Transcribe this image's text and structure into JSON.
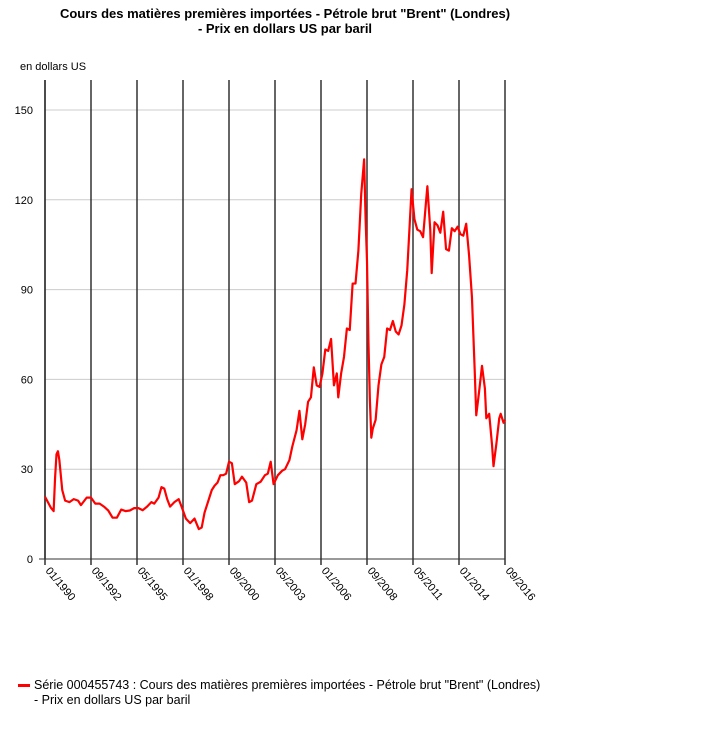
{
  "chart_data": {
    "type": "line",
    "title": "Cours des matières premières importées - Pétrole brut \"Brent\" (Londres)",
    "subtitle": "- Prix en dollars US par baril",
    "ylabel": "en dollars US",
    "ylim": [
      0,
      160
    ],
    "yticks": [
      0,
      30,
      60,
      90,
      120,
      150
    ],
    "xtick_labels": [
      "01/1990",
      "09/1992",
      "05/1995",
      "01/1998",
      "09/2000",
      "05/2003",
      "01/2006",
      "09/2008",
      "05/2011",
      "01/2014",
      "09/2016"
    ],
    "grid": true,
    "legend_position": "bottom-left",
    "color": "#ff0000",
    "series": [
      {
        "name": "Série 000455743 : Cours des matières premières importées - Pétrole brut \"Brent\" (Londres) - Prix en dollars US par baril",
        "points": [
          [
            "1990-01",
            20.8
          ],
          [
            "1990-03",
            19.0
          ],
          [
            "1990-05",
            17.2
          ],
          [
            "1990-07",
            16.0
          ],
          [
            "1990-08",
            27.0
          ],
          [
            "1990-09",
            35.0
          ],
          [
            "1990-10",
            36.0
          ],
          [
            "1990-11",
            33.0
          ],
          [
            "1990-12",
            28.0
          ],
          [
            "1991-01",
            23.0
          ],
          [
            "1991-03",
            19.5
          ],
          [
            "1991-06",
            19.0
          ],
          [
            "1991-09",
            20.0
          ],
          [
            "1991-12",
            19.5
          ],
          [
            "1992-02",
            18.0
          ],
          [
            "1992-06",
            20.5
          ],
          [
            "1992-09",
            20.5
          ],
          [
            "1992-12",
            18.5
          ],
          [
            "1993-03",
            18.5
          ],
          [
            "1993-06",
            17.5
          ],
          [
            "1993-09",
            16.2
          ],
          [
            "1993-12",
            13.8
          ],
          [
            "1994-03",
            13.8
          ],
          [
            "1994-06",
            16.5
          ],
          [
            "1994-09",
            16.0
          ],
          [
            "1994-12",
            16.2
          ],
          [
            "1995-03",
            17.0
          ],
          [
            "1995-06",
            17.0
          ],
          [
            "1995-09",
            16.3
          ],
          [
            "1995-12",
            17.5
          ],
          [
            "1996-03",
            19.0
          ],
          [
            "1996-05",
            18.5
          ],
          [
            "1996-08",
            20.5
          ],
          [
            "1996-10",
            24.0
          ],
          [
            "1996-12",
            23.5
          ],
          [
            "1997-02",
            20.0
          ],
          [
            "1997-04",
            17.5
          ],
          [
            "1997-07",
            19.0
          ],
          [
            "1997-10",
            20.0
          ],
          [
            "1997-12",
            17.5
          ],
          [
            "1998-03",
            13.5
          ],
          [
            "1998-06",
            12.0
          ],
          [
            "1998-09",
            13.5
          ],
          [
            "1998-12",
            10.0
          ],
          [
            "1999-02",
            10.5
          ],
          [
            "1999-04",
            15.5
          ],
          [
            "1999-07",
            20.0
          ],
          [
            "1999-09",
            23.0
          ],
          [
            "1999-11",
            24.5
          ],
          [
            "2000-01",
            25.5
          ],
          [
            "2000-03",
            28.0
          ],
          [
            "2000-05",
            28.0
          ],
          [
            "2000-07",
            28.5
          ],
          [
            "2000-09",
            32.5
          ],
          [
            "2000-11",
            32.0
          ],
          [
            "2001-01",
            25.0
          ],
          [
            "2001-04",
            26.0
          ],
          [
            "2001-06",
            27.5
          ],
          [
            "2001-09",
            25.5
          ],
          [
            "2001-11",
            19.0
          ],
          [
            "2002-01",
            19.5
          ],
          [
            "2002-04",
            25.0
          ],
          [
            "2002-07",
            25.8
          ],
          [
            "2002-10",
            28.0
          ],
          [
            "2002-12",
            28.5
          ],
          [
            "2003-02",
            32.5
          ],
          [
            "2003-04",
            25.0
          ],
          [
            "2003-07",
            28.0
          ],
          [
            "2003-10",
            29.5
          ],
          [
            "2003-12",
            30.0
          ],
          [
            "2004-03",
            33.0
          ],
          [
            "2004-05",
            37.5
          ],
          [
            "2004-08",
            43.0
          ],
          [
            "2004-10",
            49.5
          ],
          [
            "2004-12",
            40.0
          ],
          [
            "2005-02",
            45.0
          ],
          [
            "2005-04",
            52.5
          ],
          [
            "2005-06",
            54.0
          ],
          [
            "2005-08",
            64.0
          ],
          [
            "2005-10",
            58.0
          ],
          [
            "2005-12",
            57.5
          ],
          [
            "2006-02",
            62.0
          ],
          [
            "2006-04",
            70.0
          ],
          [
            "2006-06",
            69.5
          ],
          [
            "2006-08",
            73.5
          ],
          [
            "2006-10",
            58.0
          ],
          [
            "2006-12",
            62.0
          ],
          [
            "2007-01",
            54.0
          ],
          [
            "2007-03",
            62.0
          ],
          [
            "2007-05",
            67.5
          ],
          [
            "2007-07",
            77.0
          ],
          [
            "2007-09",
            76.5
          ],
          [
            "2007-11",
            92.0
          ],
          [
            "2008-01",
            92.0
          ],
          [
            "2008-03",
            103.0
          ],
          [
            "2008-05",
            122.0
          ],
          [
            "2008-07",
            133.5
          ],
          [
            "2008-08",
            114.0
          ],
          [
            "2008-09",
            99.5
          ],
          [
            "2008-10",
            72.5
          ],
          [
            "2008-11",
            53.0
          ],
          [
            "2008-12",
            40.5
          ],
          [
            "2009-01",
            43.5
          ],
          [
            "2009-03",
            46.5
          ],
          [
            "2009-05",
            58.0
          ],
          [
            "2009-07",
            65.0
          ],
          [
            "2009-09",
            67.5
          ],
          [
            "2009-11",
            77.0
          ],
          [
            "2010-01",
            76.5
          ],
          [
            "2010-03",
            79.5
          ],
          [
            "2010-05",
            76.0
          ],
          [
            "2010-07",
            75.0
          ],
          [
            "2010-09",
            78.0
          ],
          [
            "2010-11",
            85.0
          ],
          [
            "2011-01",
            96.5
          ],
          [
            "2011-03",
            114.5
          ],
          [
            "2011-04",
            123.5
          ],
          [
            "2011-06",
            113.5
          ],
          [
            "2011-08",
            110.0
          ],
          [
            "2011-10",
            109.5
          ],
          [
            "2011-12",
            107.5
          ],
          [
            "2012-02",
            119.0
          ],
          [
            "2012-03",
            124.5
          ],
          [
            "2012-05",
            110.0
          ],
          [
            "2012-06",
            95.5
          ],
          [
            "2012-08",
            112.5
          ],
          [
            "2012-10",
            111.5
          ],
          [
            "2012-12",
            109.0
          ],
          [
            "2013-02",
            116.0
          ],
          [
            "2013-04",
            103.5
          ],
          [
            "2013-06",
            103.0
          ],
          [
            "2013-08",
            110.5
          ],
          [
            "2013-10",
            109.5
          ],
          [
            "2013-12",
            111.0
          ],
          [
            "2014-02",
            108.5
          ],
          [
            "2014-04",
            108.0
          ],
          [
            "2014-06",
            112.0
          ],
          [
            "2014-08",
            101.5
          ],
          [
            "2014-10",
            87.5
          ],
          [
            "2014-12",
            62.0
          ],
          [
            "2015-01",
            48.0
          ],
          [
            "2015-03",
            56.0
          ],
          [
            "2015-05",
            64.5
          ],
          [
            "2015-07",
            57.0
          ],
          [
            "2015-08",
            47.0
          ],
          [
            "2015-10",
            48.5
          ],
          [
            "2015-12",
            38.0
          ],
          [
            "2016-01",
            31.0
          ],
          [
            "2016-03",
            38.5
          ],
          [
            "2016-05",
            47.0
          ],
          [
            "2016-06",
            48.5
          ],
          [
            "2016-08",
            45.5
          ],
          [
            "2016-09",
            46.5
          ]
        ]
      }
    ]
  }
}
